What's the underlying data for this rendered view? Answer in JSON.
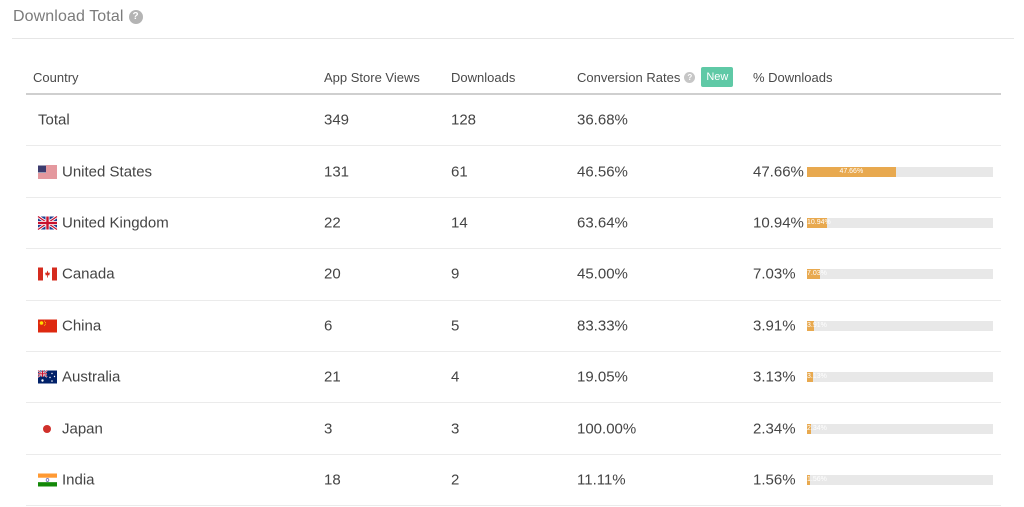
{
  "panel": {
    "title": "Download Total",
    "help_icon": "help-icon"
  },
  "table": {
    "headers": {
      "country": "Country",
      "views": "App Store Views",
      "downloads": "Downloads",
      "conversion": "Conversion Rates",
      "new_badge": "New",
      "pct": "% Downloads"
    },
    "total": {
      "label": "Total",
      "views": "349",
      "downloads": "128",
      "conversion": "36.68%"
    },
    "rows": [
      {
        "country": "United States",
        "flag": "us-flag-icon",
        "views": "131",
        "downloads": "61",
        "conversion": "46.56%",
        "pct": "47.66%",
        "pct_value": 47.66,
        "bar_label": "47.66%"
      },
      {
        "country": "United Kingdom",
        "flag": "uk-flag-icon",
        "views": "22",
        "downloads": "14",
        "conversion": "63.64%",
        "pct": "10.94%",
        "pct_value": 10.94,
        "bar_label": "10.94%"
      },
      {
        "country": "Canada",
        "flag": "canada-flag-icon",
        "views": "20",
        "downloads": "9",
        "conversion": "45.00%",
        "pct": "7.03%",
        "pct_value": 7.03,
        "bar_label": "7.03%"
      },
      {
        "country": "China",
        "flag": "china-flag-icon",
        "views": "6",
        "downloads": "5",
        "conversion": "83.33%",
        "pct": "3.91%",
        "pct_value": 3.91,
        "bar_label": "3.91%"
      },
      {
        "country": "Australia",
        "flag": "australia-flag-icon",
        "views": "21",
        "downloads": "4",
        "conversion": "19.05%",
        "pct": "3.13%",
        "pct_value": 3.13,
        "bar_label": "3.13%"
      },
      {
        "country": "Japan",
        "flag": "japan-flag-icon",
        "views": "3",
        "downloads": "3",
        "conversion": "100.00%",
        "pct": "2.34%",
        "pct_value": 2.34,
        "bar_label": "2.34%"
      },
      {
        "country": "India",
        "flag": "india-flag-icon",
        "views": "18",
        "downloads": "2",
        "conversion": "11.11%",
        "pct": "1.56%",
        "pct_value": 1.56,
        "bar_label": "1.56%"
      }
    ]
  },
  "colors": {
    "bar": "#e8a94f",
    "bar_track": "#e8e8e8",
    "new_badge": "#5fc9a6"
  }
}
